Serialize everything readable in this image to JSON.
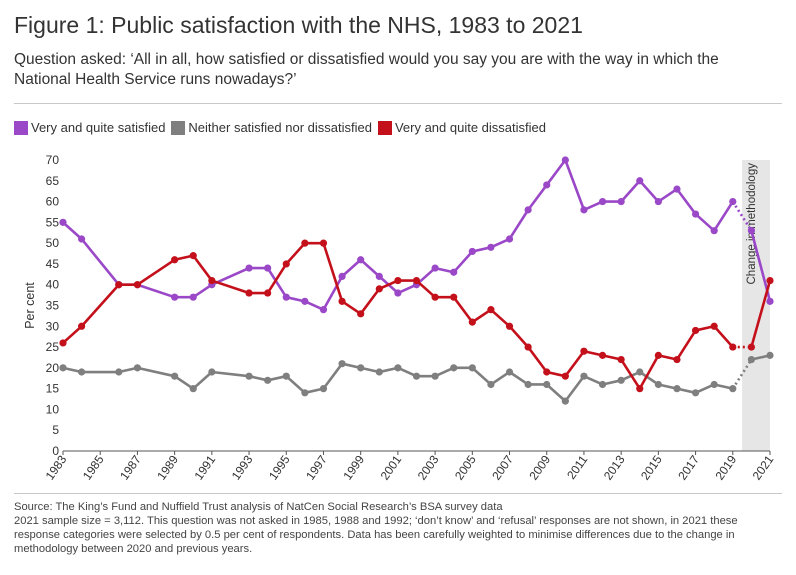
{
  "title": "Figure 1: Public satisfaction with the NHS, 1983 to 2021",
  "question": "Question asked: ‘All in all, how satisfied or dissatisfied would you say you are with the way in which the National Health Service runs nowadays?’",
  "legend": [
    {
      "label": "Very and quite satisfied",
      "color": "#9a48c8"
    },
    {
      "label": "Neither satisfied nor dissatisfied",
      "color": "#7f7f7f"
    },
    {
      "label": "Very and quite dissatisfied",
      "color": "#c4101a"
    }
  ],
  "chart_data": {
    "type": "line",
    "ylabel": "Per cent",
    "ylim": [
      0,
      70
    ],
    "yticks": [
      0,
      5,
      10,
      15,
      20,
      25,
      30,
      35,
      40,
      45,
      50,
      55,
      60,
      65,
      70
    ],
    "xlim": [
      1983,
      2021
    ],
    "xticks": [
      "1983",
      "1985",
      "1987",
      "1989",
      "1991",
      "1993",
      "1995",
      "1997",
      "1999",
      "2001",
      "2003",
      "2005",
      "2007",
      "2009",
      "2011",
      "2013",
      "2015",
      "2017",
      "2019",
      "2021"
    ],
    "x": [
      1983,
      1984,
      1986,
      1987,
      1989,
      1990,
      1991,
      1993,
      1994,
      1995,
      1996,
      1997,
      1998,
      1999,
      2000,
      2001,
      2002,
      2003,
      2004,
      2005,
      2006,
      2007,
      2008,
      2009,
      2010,
      2011,
      2012,
      2013,
      2014,
      2015,
      2016,
      2017,
      2018,
      2019,
      2020,
      2021
    ],
    "series": [
      {
        "name": "Very and quite satisfied",
        "color": "#9a48c8",
        "values": [
          55,
          51,
          40,
          40,
          37,
          37,
          40,
          44,
          44,
          37,
          36,
          34,
          42,
          46,
          42,
          38,
          40,
          44,
          43,
          48,
          49,
          51,
          58,
          64,
          70,
          58,
          60,
          60,
          65,
          60,
          63,
          57,
          53,
          60,
          53,
          36
        ]
      },
      {
        "name": "Neither satisfied nor dissatisfied",
        "color": "#7f7f7f",
        "values": [
          20,
          19,
          19,
          20,
          18,
          15,
          19,
          18,
          17,
          18,
          14,
          15,
          21,
          20,
          19,
          20,
          18,
          18,
          20,
          20,
          16,
          19,
          16,
          16,
          12,
          18,
          16,
          17,
          19,
          16,
          15,
          14,
          16,
          15,
          22,
          23
        ]
      },
      {
        "name": "Very and quite dissatisfied",
        "color": "#c4101a",
        "values": [
          26,
          30,
          40,
          40,
          46,
          47,
          41,
          38,
          38,
          45,
          50,
          50,
          36,
          33,
          39,
          41,
          41,
          37,
          37,
          31,
          34,
          30,
          25,
          19,
          18,
          24,
          23,
          22,
          15,
          23,
          22,
          29,
          30,
          25,
          25,
          41
        ]
      }
    ],
    "methodology_change": {
      "from": 2019.5,
      "to": 2021,
      "label": "Change in methodology"
    }
  },
  "footer": {
    "source": "Source: The King’s Fund and Nuffield Trust analysis of NatCen Social Research’s BSA survey data",
    "note": "2021 sample size = 3,112. This question was not asked in 1985, 1988 and 1992; ‘don’t know’ and ‘refusal’ responses are not shown, in 2021 these response categories were selected by 0.5 per cent of respondents. Data has been carefully weighted to minimise differences due to the change in methodology between 2020 and previous years."
  }
}
